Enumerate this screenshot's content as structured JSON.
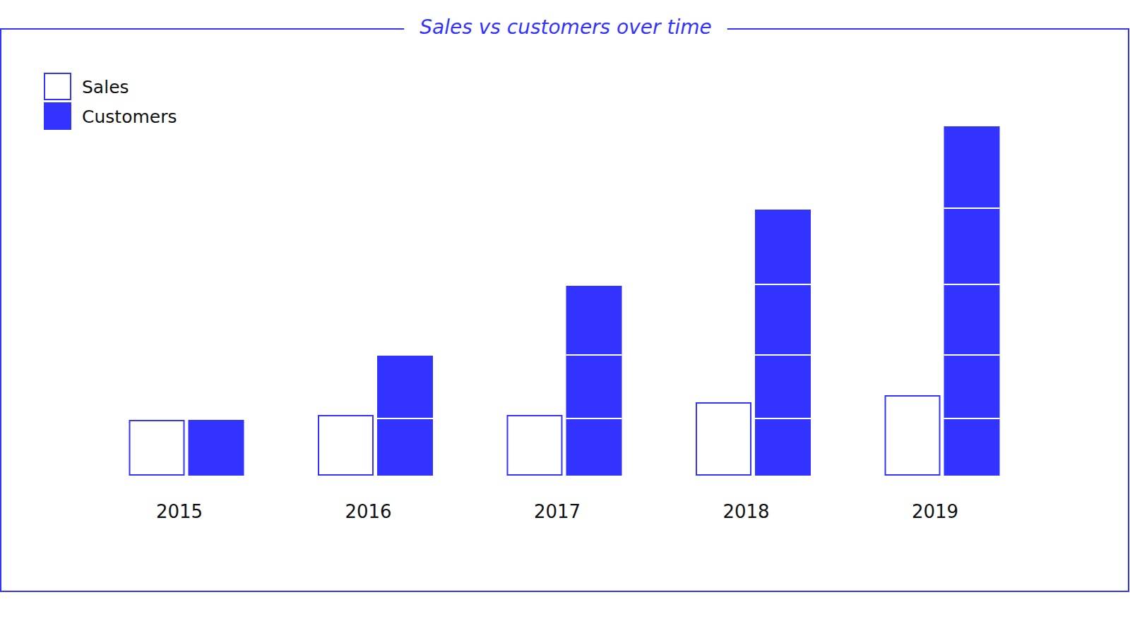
{
  "chart_data": {
    "type": "bar",
    "title": "Sales vs customers over time",
    "categories": [
      "2015",
      "2016",
      "2017",
      "2018",
      "2019"
    ],
    "series": [
      {
        "name": "Sales",
        "color": "#ffffff",
        "values": [
          79,
          86,
          86,
          104,
          114
        ]
      },
      {
        "name": "Customers",
        "color": "#3333ff",
        "stacked": true,
        "values": [
          [
            79
          ],
          [
            81,
            89
          ],
          [
            81,
            90,
            98
          ],
          [
            81,
            90,
            100,
            106
          ],
          [
            81,
            90,
            100,
            108,
            116
          ]
        ]
      }
    ],
    "ylim": [
      0,
      510
    ],
    "tick_labels": "x",
    "grid": false,
    "legend": "top-left"
  }
}
